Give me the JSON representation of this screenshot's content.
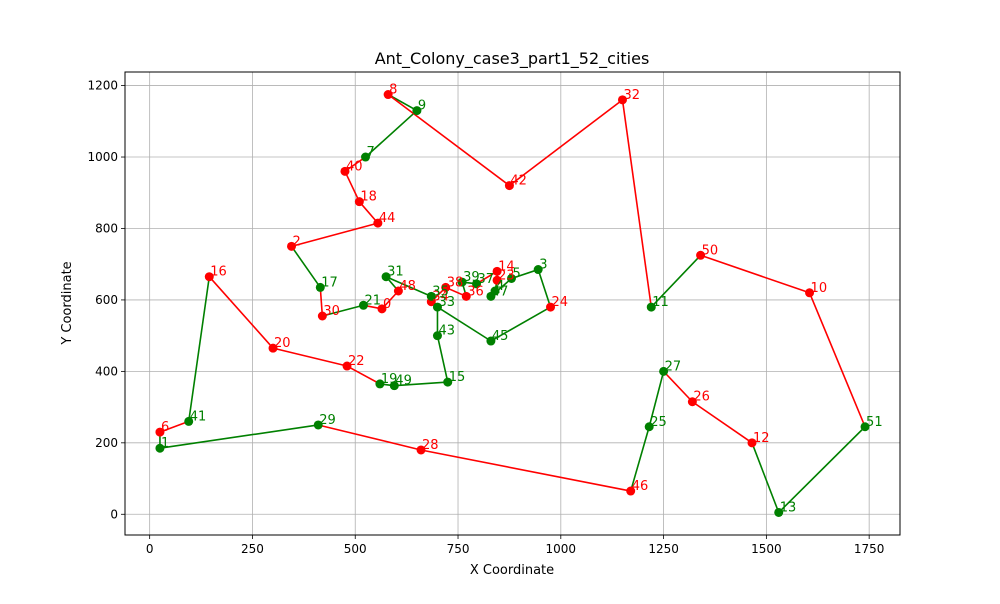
{
  "chart_data": {
    "type": "line",
    "title": "Ant_Colony_case3_part1_52_cities",
    "xlabel": "X Coordinate",
    "ylabel": "Y Coordinate",
    "xlim": [
      -60,
      1825
    ],
    "ylim": [
      -58,
      1238
    ],
    "xticks": [
      0,
      250,
      500,
      750,
      1000,
      1250,
      1500,
      1750
    ],
    "yticks": [
      0,
      200,
      400,
      600,
      800,
      1000,
      1200
    ],
    "grid": true,
    "colors": {
      "red": "#ff0000",
      "green": "#008000",
      "text_red": "#ff0000",
      "text_green": "#008000"
    },
    "cities": [
      {
        "id": "8",
        "x": 580,
        "y": 1175,
        "color": "red"
      },
      {
        "id": "9",
        "x": 650,
        "y": 1130,
        "color": "green"
      },
      {
        "id": "7",
        "x": 525,
        "y": 1000,
        "color": "green"
      },
      {
        "id": "40",
        "x": 475,
        "y": 960,
        "color": "red"
      },
      {
        "id": "18",
        "x": 510,
        "y": 875,
        "color": "red"
      },
      {
        "id": "44",
        "x": 555,
        "y": 815,
        "color": "red"
      },
      {
        "id": "2",
        "x": 345,
        "y": 750,
        "color": "red"
      },
      {
        "id": "17",
        "x": 415,
        "y": 635,
        "color": "green"
      },
      {
        "id": "30",
        "x": 420,
        "y": 555,
        "color": "red"
      },
      {
        "id": "21",
        "x": 520,
        "y": 585,
        "color": "green"
      },
      {
        "id": "0",
        "x": 565,
        "y": 575,
        "color": "red"
      },
      {
        "id": "48",
        "x": 605,
        "y": 625,
        "color": "red"
      },
      {
        "id": "31",
        "x": 575,
        "y": 665,
        "color": "green"
      },
      {
        "id": "34",
        "x": 685,
        "y": 595,
        "color": "red"
      },
      {
        "id": "35",
        "x": 685,
        "y": 610,
        "color": "green"
      },
      {
        "id": "33",
        "x": 700,
        "y": 580,
        "color": "green"
      },
      {
        "id": "38",
        "x": 720,
        "y": 635,
        "color": "red"
      },
      {
        "id": "39",
        "x": 760,
        "y": 650,
        "color": "green"
      },
      {
        "id": "36",
        "x": 770,
        "y": 610,
        "color": "red"
      },
      {
        "id": "37",
        "x": 795,
        "y": 645,
        "color": "green"
      },
      {
        "id": "14",
        "x": 845,
        "y": 680,
        "color": "red"
      },
      {
        "id": "23",
        "x": 845,
        "y": 655,
        "color": "red"
      },
      {
        "id": "4",
        "x": 840,
        "y": 625,
        "color": "green"
      },
      {
        "id": "47",
        "x": 830,
        "y": 610,
        "color": "green"
      },
      {
        "id": "5",
        "x": 880,
        "y": 660,
        "color": "green"
      },
      {
        "id": "3",
        "x": 945,
        "y": 685,
        "color": "green"
      },
      {
        "id": "24",
        "x": 975,
        "y": 580,
        "color": "red"
      },
      {
        "id": "45",
        "x": 830,
        "y": 485,
        "color": "green"
      },
      {
        "id": "43",
        "x": 700,
        "y": 500,
        "color": "green"
      },
      {
        "id": "15",
        "x": 725,
        "y": 370,
        "color": "green"
      },
      {
        "id": "49",
        "x": 595,
        "y": 360,
        "color": "green"
      },
      {
        "id": "19",
        "x": 560,
        "y": 365,
        "color": "green"
      },
      {
        "id": "22",
        "x": 480,
        "y": 415,
        "color": "red"
      },
      {
        "id": "20",
        "x": 300,
        "y": 465,
        "color": "red"
      },
      {
        "id": "16",
        "x": 145,
        "y": 665,
        "color": "red"
      },
      {
        "id": "41",
        "x": 95,
        "y": 260,
        "color": "green"
      },
      {
        "id": "1",
        "x": 25,
        "y": 185,
        "color": "green"
      },
      {
        "id": "6",
        "x": 25,
        "y": 230,
        "color": "red"
      },
      {
        "id": "29",
        "x": 410,
        "y": 250,
        "color": "green"
      },
      {
        "id": "28",
        "x": 660,
        "y": 180,
        "color": "red"
      },
      {
        "id": "46",
        "x": 1170,
        "y": 65,
        "color": "red"
      },
      {
        "id": "25",
        "x": 1215,
        "y": 245,
        "color": "green"
      },
      {
        "id": "27",
        "x": 1250,
        "y": 400,
        "color": "green"
      },
      {
        "id": "26",
        "x": 1320,
        "y": 315,
        "color": "red"
      },
      {
        "id": "12",
        "x": 1465,
        "y": 200,
        "color": "red"
      },
      {
        "id": "13",
        "x": 1530,
        "y": 5,
        "color": "green"
      },
      {
        "id": "51",
        "x": 1740,
        "y": 245,
        "color": "green"
      },
      {
        "id": "10",
        "x": 1605,
        "y": 620,
        "color": "red"
      },
      {
        "id": "50",
        "x": 1340,
        "y": 725,
        "color": "red"
      },
      {
        "id": "11",
        "x": 1220,
        "y": 580,
        "color": "green"
      },
      {
        "id": "32",
        "x": 1150,
        "y": 1160,
        "color": "red"
      },
      {
        "id": "42",
        "x": 875,
        "y": 920,
        "color": "red"
      }
    ],
    "segments": [
      {
        "from": "8",
        "to": "9",
        "color": "green"
      },
      {
        "from": "9",
        "to": "7",
        "color": "green"
      },
      {
        "from": "7",
        "to": "40",
        "color": "red"
      },
      {
        "from": "40",
        "to": "18",
        "color": "red"
      },
      {
        "from": "18",
        "to": "44",
        "color": "red"
      },
      {
        "from": "44",
        "to": "2",
        "color": "red"
      },
      {
        "from": "2",
        "to": "17",
        "color": "green"
      },
      {
        "from": "17",
        "to": "30",
        "color": "red"
      },
      {
        "from": "30",
        "to": "21",
        "color": "green"
      },
      {
        "from": "21",
        "to": "0",
        "color": "red"
      },
      {
        "from": "0",
        "to": "48",
        "color": "red"
      },
      {
        "from": "48",
        "to": "31",
        "color": "green"
      },
      {
        "from": "31",
        "to": "35",
        "color": "green"
      },
      {
        "from": "35",
        "to": "34",
        "color": "red"
      },
      {
        "from": "34",
        "to": "38",
        "color": "red"
      },
      {
        "from": "38",
        "to": "36",
        "color": "red"
      },
      {
        "from": "36",
        "to": "39",
        "color": "green"
      },
      {
        "from": "39",
        "to": "37",
        "color": "green"
      },
      {
        "from": "37",
        "to": "14",
        "color": "red"
      },
      {
        "from": "14",
        "to": "23",
        "color": "red"
      },
      {
        "from": "23",
        "to": "4",
        "color": "green"
      },
      {
        "from": "4",
        "to": "47",
        "color": "green"
      },
      {
        "from": "47",
        "to": "5",
        "color": "green"
      },
      {
        "from": "5",
        "to": "3",
        "color": "green"
      },
      {
        "from": "3",
        "to": "24",
        "color": "green"
      },
      {
        "from": "24",
        "to": "45",
        "color": "green"
      },
      {
        "from": "45",
        "to": "33",
        "color": "green"
      },
      {
        "from": "33",
        "to": "43",
        "color": "green"
      },
      {
        "from": "43",
        "to": "15",
        "color": "green"
      },
      {
        "from": "15",
        "to": "49",
        "color": "green"
      },
      {
        "from": "49",
        "to": "19",
        "color": "green"
      },
      {
        "from": "19",
        "to": "22",
        "color": "red"
      },
      {
        "from": "22",
        "to": "20",
        "color": "red"
      },
      {
        "from": "20",
        "to": "16",
        "color": "red"
      },
      {
        "from": "16",
        "to": "41",
        "color": "green"
      },
      {
        "from": "41",
        "to": "6",
        "color": "red"
      },
      {
        "from": "6",
        "to": "1",
        "color": "green"
      },
      {
        "from": "1",
        "to": "29",
        "color": "green"
      },
      {
        "from": "29",
        "to": "28",
        "color": "red"
      },
      {
        "from": "28",
        "to": "46",
        "color": "red"
      },
      {
        "from": "46",
        "to": "25",
        "color": "green"
      },
      {
        "from": "25",
        "to": "27",
        "color": "green"
      },
      {
        "from": "27",
        "to": "26",
        "color": "red"
      },
      {
        "from": "26",
        "to": "12",
        "color": "red"
      },
      {
        "from": "12",
        "to": "13",
        "color": "green"
      },
      {
        "from": "13",
        "to": "51",
        "color": "green"
      },
      {
        "from": "51",
        "to": "10",
        "color": "red"
      },
      {
        "from": "10",
        "to": "50",
        "color": "red"
      },
      {
        "from": "50",
        "to": "11",
        "color": "green"
      },
      {
        "from": "11",
        "to": "32",
        "color": "red"
      },
      {
        "from": "32",
        "to": "42",
        "color": "red"
      },
      {
        "from": "42",
        "to": "8",
        "color": "red"
      }
    ]
  }
}
